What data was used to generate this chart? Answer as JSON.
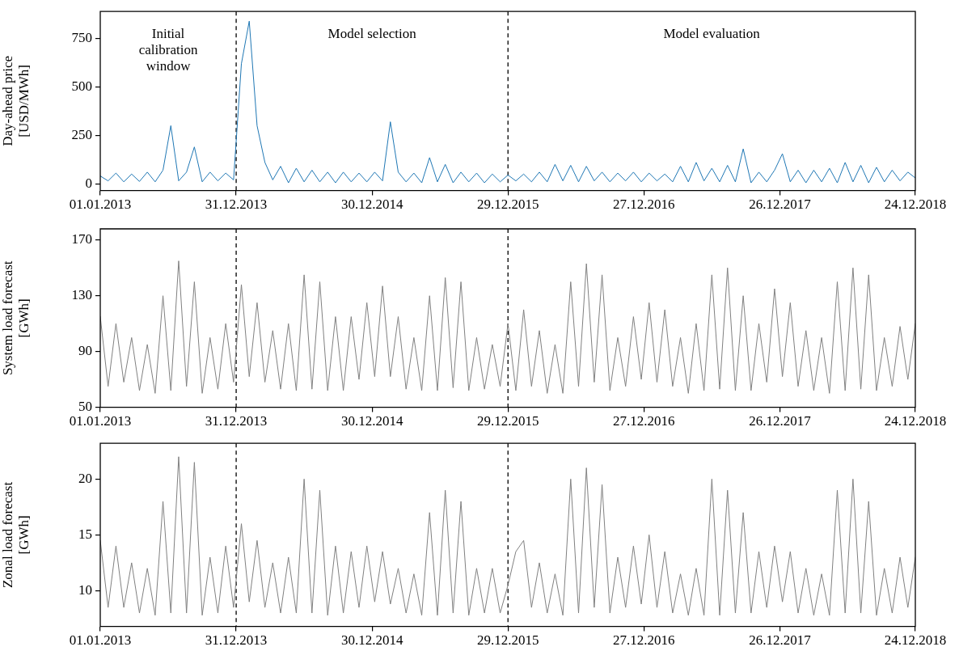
{
  "chart_data": [
    {
      "type": "line",
      "ylabel": "Day-ahead price [USD/MWh]",
      "x": [
        "2013-01-01",
        "2013-01-22",
        "2013-02-12",
        "2013-03-05",
        "2013-03-26",
        "2013-04-16",
        "2013-05-07",
        "2013-05-28",
        "2013-06-18",
        "2013-07-09",
        "2013-07-30",
        "2013-08-20",
        "2013-09-10",
        "2013-10-01",
        "2013-10-22",
        "2013-11-12",
        "2013-12-03",
        "2013-12-24",
        "2014-01-14",
        "2014-02-04",
        "2014-02-25",
        "2014-03-18",
        "2014-04-08",
        "2014-04-29",
        "2014-05-20",
        "2014-06-10",
        "2014-07-01",
        "2014-07-22",
        "2014-08-12",
        "2014-09-02",
        "2014-09-23",
        "2014-10-14",
        "2014-11-04",
        "2014-11-25",
        "2014-12-16",
        "2015-01-06",
        "2015-01-27",
        "2015-02-17",
        "2015-03-10",
        "2015-03-31",
        "2015-04-21",
        "2015-05-12",
        "2015-06-02",
        "2015-06-23",
        "2015-07-14",
        "2015-08-04",
        "2015-08-25",
        "2015-09-15",
        "2015-10-06",
        "2015-10-27",
        "2015-11-17",
        "2015-12-08",
        "2015-12-29",
        "2016-01-19",
        "2016-02-09",
        "2016-03-01",
        "2016-03-22",
        "2016-04-12",
        "2016-05-03",
        "2016-05-24",
        "2016-06-14",
        "2016-07-05",
        "2016-07-26",
        "2016-08-16",
        "2016-09-06",
        "2016-09-27",
        "2016-10-18",
        "2016-11-08",
        "2016-11-29",
        "2016-12-20",
        "2017-01-10",
        "2017-01-31",
        "2017-02-21",
        "2017-03-14",
        "2017-04-04",
        "2017-04-25",
        "2017-05-16",
        "2017-06-06",
        "2017-06-27",
        "2017-07-18",
        "2017-08-08",
        "2017-08-29",
        "2017-09-19",
        "2017-10-10",
        "2017-10-31",
        "2017-11-21",
        "2017-12-12",
        "2018-01-02",
        "2018-01-23",
        "2018-02-13",
        "2018-03-06",
        "2018-03-27",
        "2018-04-17",
        "2018-05-08",
        "2018-05-29",
        "2018-06-19",
        "2018-07-10",
        "2018-07-31",
        "2018-08-21",
        "2018-09-11",
        "2018-10-02",
        "2018-10-23",
        "2018-11-13",
        "2018-12-04",
        "2018-12-24"
      ],
      "series": [
        {
          "color": "#1f77b4",
          "values": [
            40,
            15,
            55,
            10,
            50,
            12,
            60,
            10,
            70,
            300,
            15,
            60,
            190,
            10,
            60,
            15,
            55,
            20,
            620,
            840,
            300,
            110,
            20,
            90,
            5,
            80,
            10,
            70,
            10,
            60,
            5,
            60,
            10,
            55,
            10,
            60,
            15,
            320,
            60,
            10,
            55,
            5,
            135,
            10,
            100,
            5,
            60,
            10,
            55,
            5,
            50,
            10,
            45,
            15,
            50,
            10,
            60,
            10,
            100,
            15,
            95,
            10,
            90,
            15,
            60,
            10,
            55,
            15,
            60,
            10,
            55,
            15,
            50,
            10,
            90,
            10,
            110,
            15,
            80,
            10,
            95,
            10,
            180,
            5,
            60,
            10,
            70,
            155,
            10,
            70,
            5,
            70,
            10,
            80,
            5,
            110,
            10,
            95,
            5,
            85,
            10,
            70,
            15,
            60,
            30
          ]
        }
      ],
      "xlim": [
        "2013-01-01",
        "2018-12-24"
      ],
      "xticks": [
        {
          "value": "2013-01-01",
          "label": "01.01.2013"
        },
        {
          "value": "2013-12-31",
          "label": "31.12.2013"
        },
        {
          "value": "2014-12-30",
          "label": "30.12.2014"
        },
        {
          "value": "2015-12-29",
          "label": "29.12.2015"
        },
        {
          "value": "2016-12-27",
          "label": "27.12.2016"
        },
        {
          "value": "2017-12-26",
          "label": "26.12.2017"
        },
        {
          "value": "2018-12-24",
          "label": "24.12.2018"
        }
      ],
      "ylim": [
        -35,
        890
      ],
      "yticks": [
        0,
        250,
        500,
        750
      ],
      "marker": "none",
      "line_style": "solid",
      "ref_lines": [
        {
          "axis": "x",
          "value": "2013-12-31",
          "color": "#000000",
          "line_style": "dashed"
        },
        {
          "axis": "x",
          "value": "2015-12-29",
          "color": "#000000",
          "line_style": "dashed"
        }
      ],
      "annotations": [
        "Initial calibration window",
        "Model selection",
        "Model evaluation"
      ]
    },
    {
      "type": "line",
      "ylabel": "System load forecast [GWh]",
      "x": [
        "2013-01-01",
        "2013-01-22",
        "2013-02-12",
        "2013-03-05",
        "2013-03-26",
        "2013-04-16",
        "2013-05-07",
        "2013-05-28",
        "2013-06-18",
        "2013-07-09",
        "2013-07-30",
        "2013-08-20",
        "2013-09-10",
        "2013-10-01",
        "2013-10-22",
        "2013-11-12",
        "2013-12-03",
        "2013-12-24",
        "2014-01-14",
        "2014-02-04",
        "2014-02-25",
        "2014-03-18",
        "2014-04-08",
        "2014-04-29",
        "2014-05-20",
        "2014-06-10",
        "2014-07-01",
        "2014-07-22",
        "2014-08-12",
        "2014-09-02",
        "2014-09-23",
        "2014-10-14",
        "2014-11-04",
        "2014-11-25",
        "2014-12-16",
        "2015-01-06",
        "2015-01-27",
        "2015-02-17",
        "2015-03-10",
        "2015-03-31",
        "2015-04-21",
        "2015-05-12",
        "2015-06-02",
        "2015-06-23",
        "2015-07-14",
        "2015-08-04",
        "2015-08-25",
        "2015-09-15",
        "2015-10-06",
        "2015-10-27",
        "2015-11-17",
        "2015-12-08",
        "2015-12-29",
        "2016-01-19",
        "2016-02-09",
        "2016-03-01",
        "2016-03-22",
        "2016-04-12",
        "2016-05-03",
        "2016-05-24",
        "2016-06-14",
        "2016-07-05",
        "2016-07-26",
        "2016-08-16",
        "2016-09-06",
        "2016-09-27",
        "2016-10-18",
        "2016-11-08",
        "2016-11-29",
        "2016-12-20",
        "2017-01-10",
        "2017-01-31",
        "2017-02-21",
        "2017-03-14",
        "2017-04-04",
        "2017-04-25",
        "2017-05-16",
        "2017-06-06",
        "2017-06-27",
        "2017-07-18",
        "2017-08-08",
        "2017-08-29",
        "2017-09-19",
        "2017-10-10",
        "2017-10-31",
        "2017-11-21",
        "2017-12-12",
        "2018-01-02",
        "2018-01-23",
        "2018-02-13",
        "2018-03-06",
        "2018-03-27",
        "2018-04-17",
        "2018-05-08",
        "2018-05-29",
        "2018-06-19",
        "2018-07-10",
        "2018-07-31",
        "2018-08-21",
        "2018-09-11",
        "2018-10-02",
        "2018-10-23",
        "2018-11-13",
        "2018-12-04",
        "2018-12-24"
      ],
      "series": [
        {
          "color": "#808080",
          "values": [
            115,
            65,
            110,
            68,
            100,
            62,
            95,
            60,
            130,
            62,
            155,
            65,
            140,
            60,
            100,
            63,
            110,
            68,
            138,
            72,
            125,
            68,
            105,
            63,
            110,
            62,
            145,
            63,
            140,
            62,
            115,
            62,
            115,
            70,
            125,
            72,
            137,
            72,
            115,
            63,
            100,
            62,
            130,
            62,
            143,
            64,
            140,
            62,
            100,
            63,
            95,
            65,
            110,
            62,
            120,
            65,
            105,
            60,
            95,
            60,
            140,
            65,
            153,
            68,
            145,
            62,
            100,
            65,
            115,
            70,
            125,
            68,
            120,
            65,
            100,
            60,
            110,
            62,
            145,
            63,
            150,
            62,
            130,
            62,
            110,
            68,
            135,
            72,
            125,
            65,
            105,
            62,
            100,
            60,
            140,
            62,
            150,
            63,
            145,
            62,
            100,
            65,
            108,
            70,
            110
          ]
        }
      ],
      "xlim": [
        "2013-01-01",
        "2018-12-24"
      ],
      "xticks": [
        {
          "value": "2013-01-01",
          "label": "01.01.2013"
        },
        {
          "value": "2013-12-31",
          "label": "31.12.2013"
        },
        {
          "value": "2014-12-30",
          "label": "30.12.2014"
        },
        {
          "value": "2015-12-29",
          "label": "29.12.2015"
        },
        {
          "value": "2016-12-27",
          "label": "27.12.2016"
        },
        {
          "value": "2017-12-26",
          "label": "26.12.2017"
        },
        {
          "value": "2018-12-24",
          "label": "24.12.2018"
        }
      ],
      "ylim": [
        50,
        178
      ],
      "yticks": [
        50,
        90,
        130,
        170
      ],
      "marker": "none",
      "line_style": "solid",
      "ref_lines": [
        {
          "axis": "x",
          "value": "2013-12-31",
          "color": "#000000",
          "line_style": "dashed"
        },
        {
          "axis": "x",
          "value": "2015-12-29",
          "color": "#000000",
          "line_style": "dashed"
        }
      ]
    },
    {
      "type": "line",
      "ylabel": "Zonal load forecast [GWh]",
      "x": [
        "2013-01-01",
        "2013-01-22",
        "2013-02-12",
        "2013-03-05",
        "2013-03-26",
        "2013-04-16",
        "2013-05-07",
        "2013-05-28",
        "2013-06-18",
        "2013-07-09",
        "2013-07-30",
        "2013-08-20",
        "2013-09-10",
        "2013-10-01",
        "2013-10-22",
        "2013-11-12",
        "2013-12-03",
        "2013-12-24",
        "2014-01-14",
        "2014-02-04",
        "2014-02-25",
        "2014-03-18",
        "2014-04-08",
        "2014-04-29",
        "2014-05-20",
        "2014-06-10",
        "2014-07-01",
        "2014-07-22",
        "2014-08-12",
        "2014-09-02",
        "2014-09-23",
        "2014-10-14",
        "2014-11-04",
        "2014-11-25",
        "2014-12-16",
        "2015-01-06",
        "2015-01-27",
        "2015-02-17",
        "2015-03-10",
        "2015-03-31",
        "2015-04-21",
        "2015-05-12",
        "2015-06-02",
        "2015-06-23",
        "2015-07-14",
        "2015-08-04",
        "2015-08-25",
        "2015-09-15",
        "2015-10-06",
        "2015-10-27",
        "2015-11-17",
        "2015-12-08",
        "2015-12-29",
        "2016-01-19",
        "2016-02-09",
        "2016-03-01",
        "2016-03-22",
        "2016-04-12",
        "2016-05-03",
        "2016-05-24",
        "2016-06-14",
        "2016-07-05",
        "2016-07-26",
        "2016-08-16",
        "2016-09-06",
        "2016-09-27",
        "2016-10-18",
        "2016-11-08",
        "2016-11-29",
        "2016-12-20",
        "2017-01-10",
        "2017-01-31",
        "2017-02-21",
        "2017-03-14",
        "2017-04-04",
        "2017-04-25",
        "2017-05-16",
        "2017-06-06",
        "2017-06-27",
        "2017-07-18",
        "2017-08-08",
        "2017-08-29",
        "2017-09-19",
        "2017-10-10",
        "2017-10-31",
        "2017-11-21",
        "2017-12-12",
        "2018-01-02",
        "2018-01-23",
        "2018-02-13",
        "2018-03-06",
        "2018-03-27",
        "2018-04-17",
        "2018-05-08",
        "2018-05-29",
        "2018-06-19",
        "2018-07-10",
        "2018-07-31",
        "2018-08-21",
        "2018-09-11",
        "2018-10-02",
        "2018-10-23",
        "2018-11-13",
        "2018-12-04",
        "2018-12-24"
      ],
      "series": [
        {
          "color": "#808080",
          "values": [
            14.5,
            8.5,
            14,
            8.5,
            12.5,
            8,
            12,
            7.8,
            18,
            8,
            22,
            8,
            21.5,
            7.8,
            13,
            8,
            14,
            8.5,
            16,
            9,
            14.5,
            8.5,
            12.5,
            8,
            13,
            8,
            20,
            8,
            19,
            7.8,
            14,
            8,
            13.5,
            8.5,
            14,
            9,
            13.5,
            8.8,
            12,
            8,
            11.5,
            7.8,
            17,
            7.8,
            19,
            8,
            18,
            7.8,
            12,
            8,
            12,
            8,
            10.5,
            13.5,
            14.5,
            8.5,
            12.5,
            8,
            11.5,
            7.8,
            20,
            8,
            21,
            8.5,
            19.5,
            8,
            13,
            8.5,
            14,
            8.8,
            15,
            8.5,
            13.5,
            8,
            11.5,
            7.8,
            12,
            7.8,
            20,
            7.8,
            19,
            8,
            17,
            8,
            13.5,
            8.5,
            14,
            9,
            13.5,
            8,
            12,
            7.8,
            11.5,
            7.8,
            19,
            8,
            20,
            8,
            18,
            7.8,
            12,
            8,
            13,
            8.5,
            13
          ]
        }
      ],
      "xlim": [
        "2013-01-01",
        "2018-12-24"
      ],
      "xticks": [
        {
          "value": "2013-01-01",
          "label": "01.01.2013"
        },
        {
          "value": "2013-12-31",
          "label": "31.12.2013"
        },
        {
          "value": "2014-12-30",
          "label": "30.12.2014"
        },
        {
          "value": "2015-12-29",
          "label": "29.12.2015"
        },
        {
          "value": "2016-12-27",
          "label": "27.12.2016"
        },
        {
          "value": "2017-12-26",
          "label": "26.12.2017"
        },
        {
          "value": "2018-12-24",
          "label": "24.12.2018"
        }
      ],
      "ylim": [
        6.8,
        23.2
      ],
      "yticks": [
        10,
        15,
        20
      ],
      "marker": "none",
      "line_style": "solid",
      "ref_lines": [
        {
          "axis": "x",
          "value": "2013-12-31",
          "color": "#000000",
          "line_style": "dashed"
        },
        {
          "axis": "x",
          "value": "2015-12-29",
          "color": "#000000",
          "line_style": "dashed"
        }
      ]
    }
  ]
}
